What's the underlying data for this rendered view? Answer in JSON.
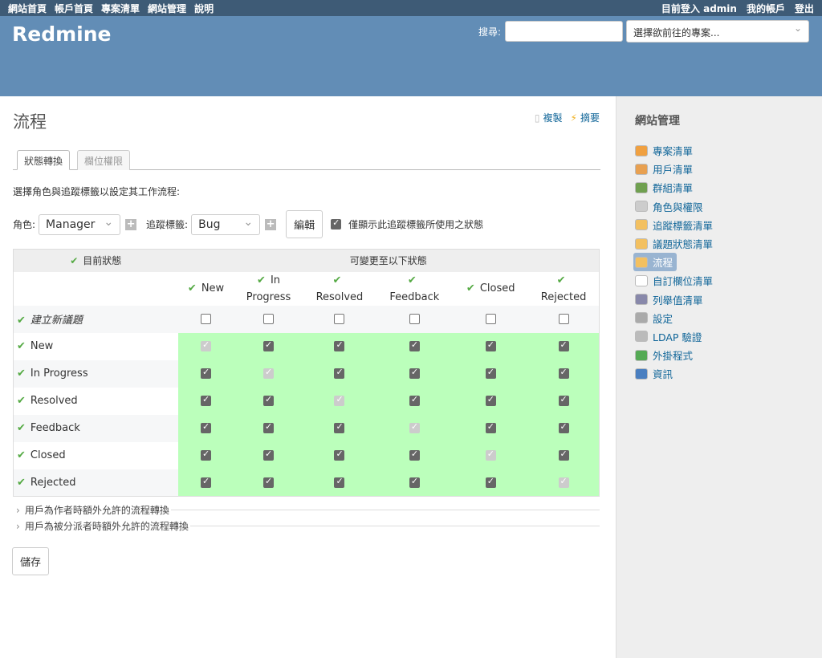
{
  "top_menu": {
    "left": [
      "網站首頁",
      "帳戶首頁",
      "專案清單",
      "網站管理",
      "說明"
    ],
    "logged_in": "目前登入",
    "user": "admin",
    "my_account": "我的帳戶",
    "logout": "登出"
  },
  "header": {
    "title": "Redmine",
    "search_label": "搜尋:",
    "search_value": "",
    "project_jump": "選擇欲前往的專案..."
  },
  "page": {
    "title": "流程",
    "copy": "複製",
    "summary": "摘要",
    "tabs": [
      "狀態轉換",
      "欄位權限"
    ],
    "intro": "選擇角色與追蹤標籤以設定其工作流程:",
    "role_label": "角色:",
    "role_value": "Manager",
    "tracker_label": "追蹤標籤:",
    "tracker_value": "Bug",
    "edit": "編輯",
    "only_used": "僅顯示此追蹤標籤所使用之狀態",
    "only_used_checked": true,
    "table": {
      "current_status": "目前狀態",
      "new_statuses": "可變更至以下狀態",
      "columns": [
        [
          "New"
        ],
        [
          "In",
          "Progress"
        ],
        [
          "",
          "Resolved"
        ],
        [
          "",
          "Feedback"
        ],
        [
          "Closed"
        ],
        [
          "",
          "Rejected"
        ]
      ],
      "new_issue_label": "建立新議題",
      "new_issue_row": [
        false,
        false,
        false,
        false,
        false,
        false
      ],
      "rows": [
        {
          "status": "New",
          "values": [
            "disabled",
            true,
            true,
            true,
            true,
            true
          ]
        },
        {
          "status": "In Progress",
          "values": [
            true,
            "disabled",
            true,
            true,
            true,
            true
          ]
        },
        {
          "status": "Resolved",
          "values": [
            true,
            true,
            "disabled",
            true,
            true,
            true
          ]
        },
        {
          "status": "Feedback",
          "values": [
            true,
            true,
            true,
            "disabled",
            true,
            true
          ]
        },
        {
          "status": "Closed",
          "values": [
            true,
            true,
            true,
            true,
            "disabled",
            true
          ]
        },
        {
          "status": "Rejected",
          "values": [
            true,
            true,
            true,
            true,
            true,
            "disabled"
          ]
        }
      ],
      "highlight_color": "#bbffbb"
    },
    "author_section": "用戶為作者時額外允許的流程轉換",
    "assignee_section": "用戶為被分派者時額外允許的流程轉換",
    "save": "儲存"
  },
  "sidebar": {
    "title": "網站管理",
    "items": [
      {
        "label": "專案清單",
        "icon": "projects-icon",
        "color": "#f0a040"
      },
      {
        "label": "用戶清單",
        "icon": "user-icon",
        "color": "#e8a050"
      },
      {
        "label": "群組清單",
        "icon": "group-icon",
        "color": "#70a050"
      },
      {
        "label": "角色與權限",
        "icon": "database-key-icon",
        "color": "#ccc"
      },
      {
        "label": "追蹤標籤清單",
        "icon": "ticket-icon",
        "color": "#f3c060"
      },
      {
        "label": "議題狀態清單",
        "icon": "ticket-edit-icon",
        "color": "#f3c060"
      },
      {
        "label": "流程",
        "icon": "workflow-icon",
        "color": "#f3c060",
        "selected": true
      },
      {
        "label": "自訂欄位清單",
        "icon": "textfield-icon",
        "color": "#fff"
      },
      {
        "label": "列舉值清單",
        "icon": "list-icon",
        "color": "#88a"
      },
      {
        "label": "設定",
        "icon": "gear-icon",
        "color": "#aaa"
      },
      {
        "label": "LDAP 驗證",
        "icon": "server-key-icon",
        "color": "#bbb"
      },
      {
        "label": "外掛程式",
        "icon": "plugin-icon",
        "color": "#5a5"
      },
      {
        "label": "資訊",
        "icon": "help-icon",
        "color": "#4a7fc0"
      }
    ]
  }
}
